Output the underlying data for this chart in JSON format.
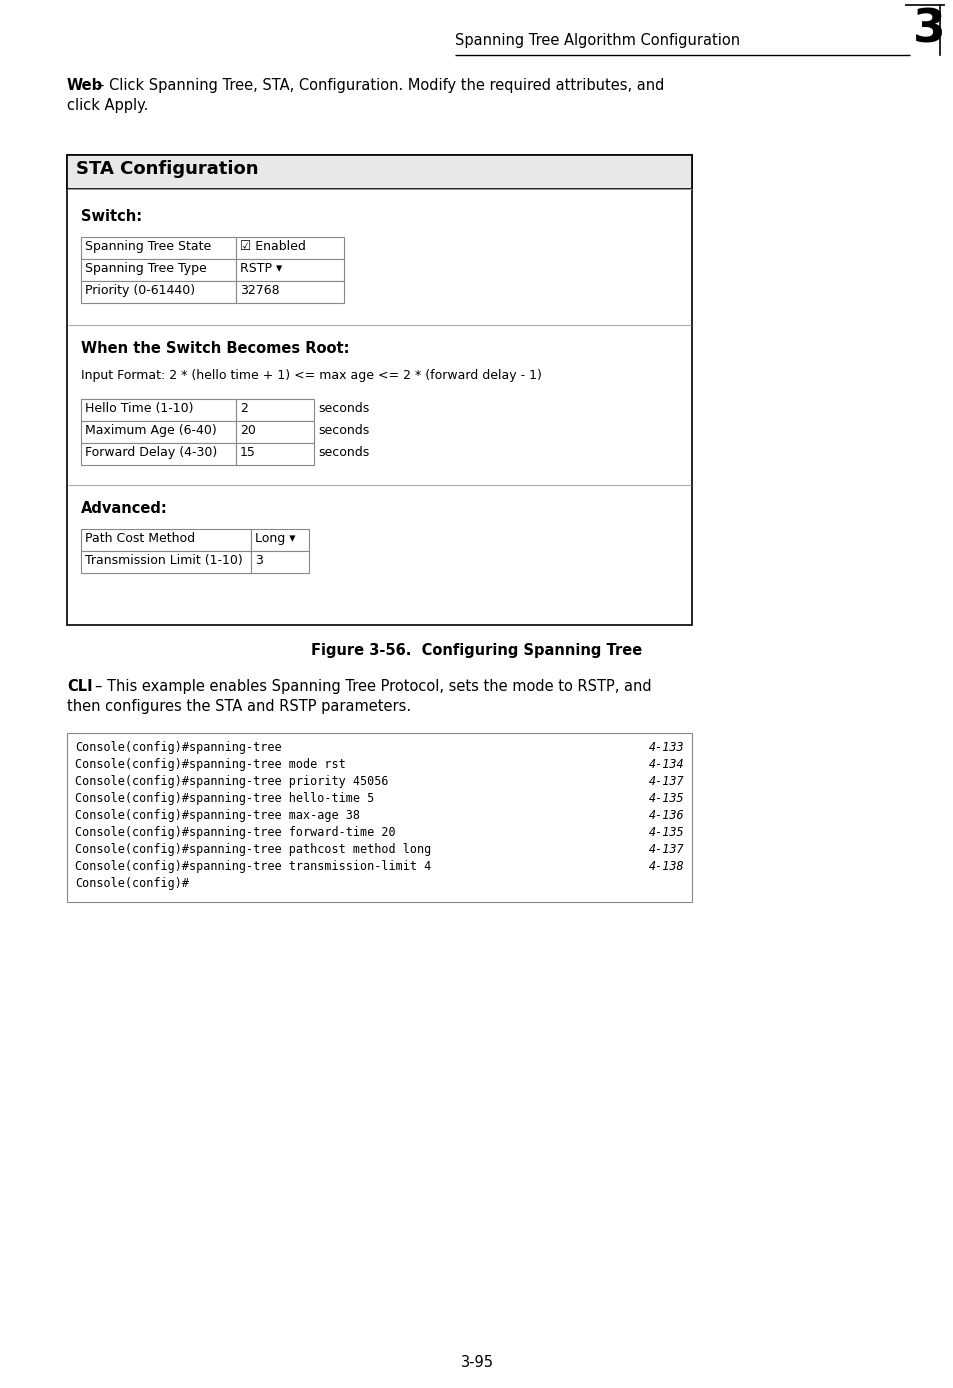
{
  "header_chapter": "Spanning Tree Algorithm Configuration",
  "header_number": "3",
  "page_number": "3-95",
  "web_text_bold": "Web",
  "web_text": " – Click Spanning Tree, STA, Configuration. Modify the required attributes, and click Apply.",
  "box_title": "STA Configuration",
  "switch_label": "Switch:",
  "switch_rows": [
    [
      "Spanning Tree State",
      "☑ Enabled"
    ],
    [
      "Spanning Tree Type",
      "RSTP ▾"
    ],
    [
      "Priority (0-61440)",
      "32768"
    ]
  ],
  "root_label": "When the Switch Becomes Root:",
  "input_format": "Input Format: 2 * (hello time + 1) <= max age <= 2 * (forward delay - 1)",
  "root_rows": [
    [
      "Hello Time (1-10)",
      "2",
      "seconds"
    ],
    [
      "Maximum Age (6-40)",
      "20",
      "seconds"
    ],
    [
      "Forward Delay (4-30)",
      "15",
      "seconds"
    ]
  ],
  "advanced_label": "Advanced:",
  "advanced_rows": [
    [
      "Path Cost Method",
      "Long ▾"
    ],
    [
      "Transmission Limit (1-10)",
      "3"
    ]
  ],
  "figure_caption": "Figure 3-56.  Configuring Spanning Tree",
  "cli_text_bold": "CLI",
  "cli_text": " – This example enables Spanning Tree Protocol, sets the mode to RSTP, and then configures the STA and RSTP parameters.",
  "cli_lines": [
    [
      "Console(config)#spanning-tree",
      "4-133"
    ],
    [
      "Console(config)#spanning-tree mode rst",
      "4-134"
    ],
    [
      "Console(config)#spanning-tree priority 45056",
      "4-137"
    ],
    [
      "Console(config)#spanning-tree hello-time 5",
      "4-135"
    ],
    [
      "Console(config)#spanning-tree max-age 38",
      "4-136"
    ],
    [
      "Console(config)#spanning-tree forward-time 20",
      "4-135"
    ],
    [
      "Console(config)#spanning-tree pathcost method long",
      "4-137"
    ],
    [
      "Console(config)#spanning-tree transmission-limit 4",
      "4-138"
    ],
    [
      "Console(config)#",
      ""
    ]
  ],
  "bg_color": "#ffffff"
}
